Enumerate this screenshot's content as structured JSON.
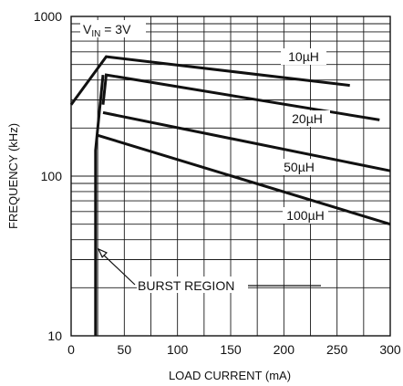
{
  "chart_data": {
    "type": "line",
    "title": "",
    "xlabel": "LOAD CURRENT (mA)",
    "ylabel": "FREQUENCY (kHz)",
    "xlim": [
      0,
      300
    ],
    "ylim": [
      10,
      1000
    ],
    "y_scale": "log",
    "grid": true,
    "x_ticks": [
      0,
      50,
      100,
      150,
      200,
      250,
      300
    ],
    "x_tick_labels": [
      "0",
      "50",
      "100",
      "150",
      "200",
      "250",
      "300"
    ],
    "y_ticks": [
      10,
      100,
      1000
    ],
    "y_tick_labels": [
      "10",
      "100",
      "1000"
    ],
    "condition_label": {
      "main": "V",
      "sub": "IN",
      "rest": " = 3V"
    },
    "annotation": "BURST REGION",
    "series": [
      {
        "name": "10µH",
        "x": [
          0,
          33,
          262
        ],
        "y": [
          280,
          560,
          370
        ]
      },
      {
        "name": "20µH",
        "x": [
          30,
          33,
          290
        ],
        "y": [
          280,
          430,
          225
        ]
      },
      {
        "name": "50µH",
        "x": [
          30,
          300
        ],
        "y": [
          250,
          108
        ]
      },
      {
        "name": "100µH",
        "x": [
          25,
          300
        ],
        "y": [
          180,
          50
        ]
      }
    ],
    "burst_region": {
      "x": [
        23,
        23,
        30
      ],
      "y": [
        10,
        145,
        430
      ]
    }
  }
}
